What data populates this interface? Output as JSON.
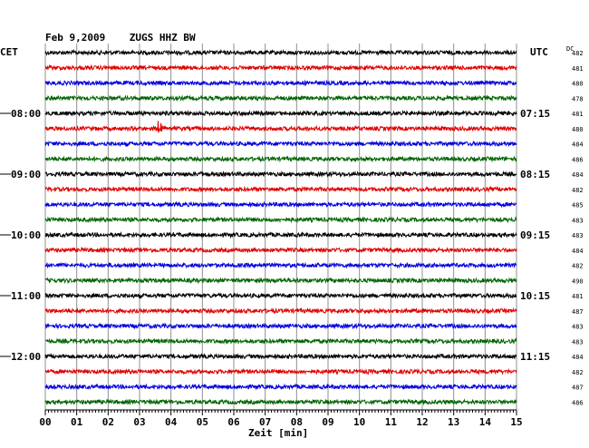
{
  "chart_data": {
    "type": "line",
    "title": "Feb 9,2009    ZUGS HHZ BW",
    "left_zone": "CET",
    "right_zone": "UTC",
    "dc_header": "DC",
    "xlabel": "Zeit [min]",
    "xlim": [
      0,
      15
    ],
    "x_ticks": [
      "00",
      "01",
      "02",
      "03",
      "04",
      "05",
      "06",
      "07",
      "08",
      "09",
      "10",
      "11",
      "12",
      "13",
      "14",
      "15"
    ],
    "left_hour_labels": [
      {
        "row": 4,
        "label": "08:00"
      },
      {
        "row": 8,
        "label": "09:00"
      },
      {
        "row": 12,
        "label": "10:00"
      },
      {
        "row": 16,
        "label": "11:00"
      },
      {
        "row": 20,
        "label": "12:00"
      }
    ],
    "right_hour_labels": [
      {
        "row": 4,
        "label": "07:15"
      },
      {
        "row": 8,
        "label": "08:15"
      },
      {
        "row": 12,
        "label": "09:15"
      },
      {
        "row": 16,
        "label": "10:15"
      },
      {
        "row": 20,
        "label": "11:15"
      }
    ],
    "trace_colors": [
      "#000000",
      "#e00000",
      "#0000e0",
      "#006400"
    ],
    "dc_offsets": [
      482,
      481,
      480,
      478,
      481,
      480,
      484,
      486,
      484,
      482,
      485,
      483,
      483,
      484,
      482,
      490,
      481,
      487,
      483,
      483,
      484,
      482,
      487,
      486
    ],
    "events": [
      {
        "row": 5,
        "minute": 3.6,
        "amplitude": "large"
      },
      {
        "row": 8,
        "minute": 4.95,
        "amplitude": "small"
      }
    ]
  }
}
